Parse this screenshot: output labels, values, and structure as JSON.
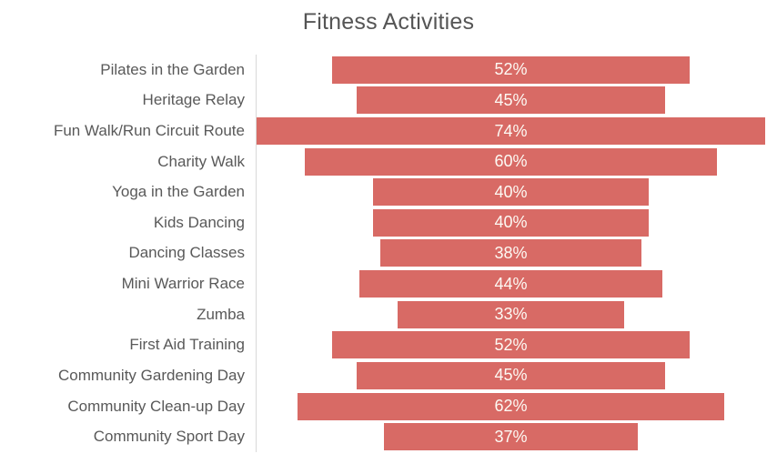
{
  "chart_data": {
    "type": "bar",
    "subtype": "horizontal-centered-funnel",
    "title": "Fitness Activities",
    "categories": [
      "Pilates in the Garden",
      "Heritage Relay",
      "Fun Walk/Run Circuit Route",
      "Charity Walk",
      "Yoga in the Garden",
      "Kids Dancing",
      "Dancing Classes",
      "Mini Warrior Race",
      "Zumba",
      "First Aid Training",
      "Community Gardening Day",
      "Community Clean-up Day",
      "Community Sport Day"
    ],
    "values": [
      52,
      45,
      74,
      60,
      40,
      40,
      38,
      44,
      33,
      52,
      45,
      62,
      37
    ],
    "value_suffix": "%",
    "value_labels": [
      "52%",
      "45%",
      "74%",
      "60%",
      "40%",
      "40%",
      "38%",
      "44%",
      "33%",
      "52%",
      "45%",
      "62%",
      "37%"
    ],
    "axis_max": 74,
    "xlabel": "",
    "ylabel": "",
    "legend": "none",
    "grid": false,
    "colors": {
      "bar": "#d86a65",
      "value_label": "#fdfaf4",
      "category_label": "#595959",
      "title": "#555555",
      "axis_line": "#d9d9d9",
      "background": "#ffffff"
    }
  }
}
